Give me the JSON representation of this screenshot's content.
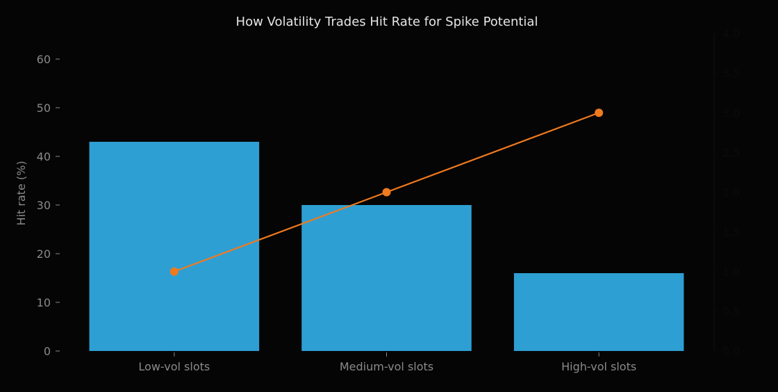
{
  "chart_data": {
    "type": "bar+line",
    "title": "How Volatility Trades Hit Rate for Spike Potential",
    "categories": [
      "Low-vol slots",
      "Medium-vol slots",
      "High-vol slots"
    ],
    "ylabel": "Hit rate (%)",
    "ylim": [
      0,
      64
    ],
    "yticks": [
      "0",
      "10",
      "20",
      "30",
      "40",
      "50",
      "60"
    ],
    "y2label": "",
    "y2lim": [
      0,
      4.0
    ],
    "y2ticks": [
      "0.0",
      "0.5",
      "1.0",
      "1.5",
      "2.0",
      "2.5",
      "3.0",
      "3.5",
      "4.0"
    ],
    "grid": false,
    "series": [
      {
        "type": "bar",
        "axis": "left",
        "values": [
          43,
          30,
          16
        ],
        "color": "#2e9fd3"
      },
      {
        "type": "line",
        "axis": "right",
        "values": [
          1.0,
          2.0,
          3.0
        ],
        "color": "#f07a1e",
        "marker": "circle"
      }
    ],
    "colors": {
      "background": "#050505",
      "text": "#e6e6e6",
      "axis_text": "#8a8a8a",
      "right_axis_text": "#0b0b0b"
    }
  }
}
